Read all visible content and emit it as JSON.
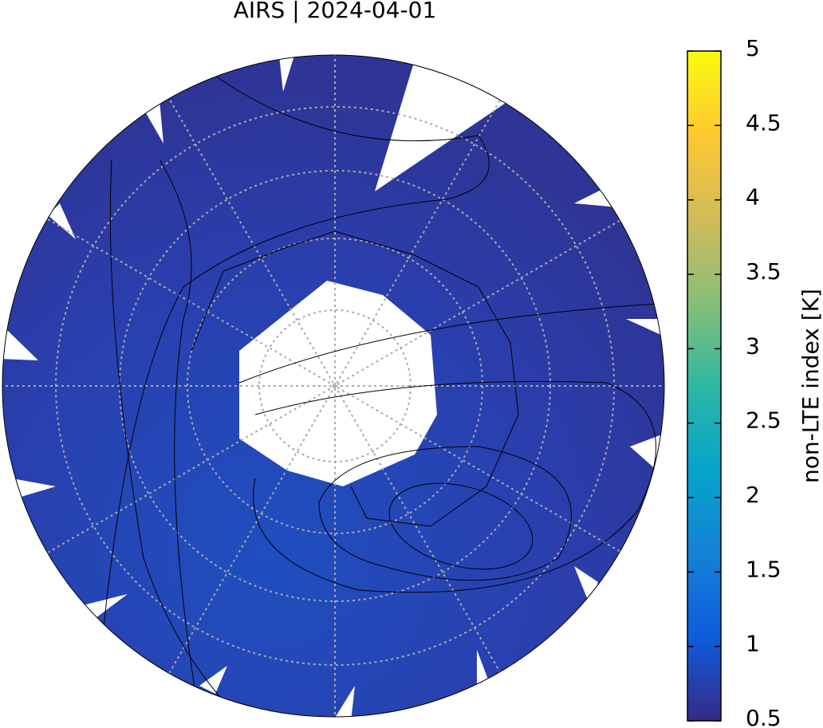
{
  "title": "AIRS | 2024-04-01",
  "colorbar": {
    "label": "non-LTE index [K]",
    "range": [
      0.5,
      5
    ],
    "ticks": [
      0.5,
      1,
      1.5,
      2,
      2.5,
      3,
      3.5,
      4,
      4.5,
      5
    ],
    "colors": [
      "#352a87",
      "#0f5cdd",
      "#1481d6",
      "#06a4ca",
      "#2eb7a4",
      "#87bf77",
      "#d1bb59",
      "#fec832",
      "#f9fb0e"
    ]
  }
}
